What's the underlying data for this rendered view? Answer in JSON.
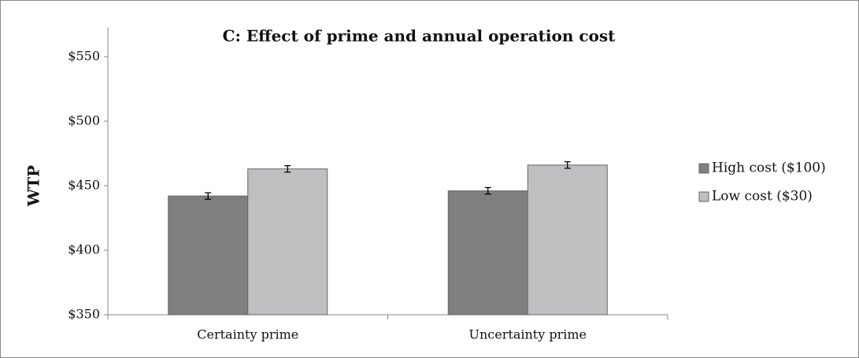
{
  "chart_data": {
    "type": "bar",
    "title": "C: Effect of prime and annual operation cost",
    "y_label": "WTP",
    "categories": [
      "Certainty prime",
      "Uncertainty prime"
    ],
    "series": [
      {
        "name": "High cost ($100)",
        "color": "#7f7f80",
        "values": [
          442,
          446
        ],
        "errors": [
          2.5,
          2.5
        ]
      },
      {
        "name": "Low cost ($30)",
        "color": "#bfbfc1",
        "values": [
          463,
          466
        ],
        "errors": [
          2.5,
          2.5
        ]
      }
    ],
    "ylim": [
      350,
      550
    ],
    "yticks": [
      {
        "value": 350,
        "label": "$350"
      },
      {
        "value": 400,
        "label": "$400"
      },
      {
        "value": 450,
        "label": "$450"
      },
      {
        "value": 500,
        "label": "$500"
      },
      {
        "value": 550,
        "label": "$550"
      }
    ],
    "legend": "right"
  }
}
